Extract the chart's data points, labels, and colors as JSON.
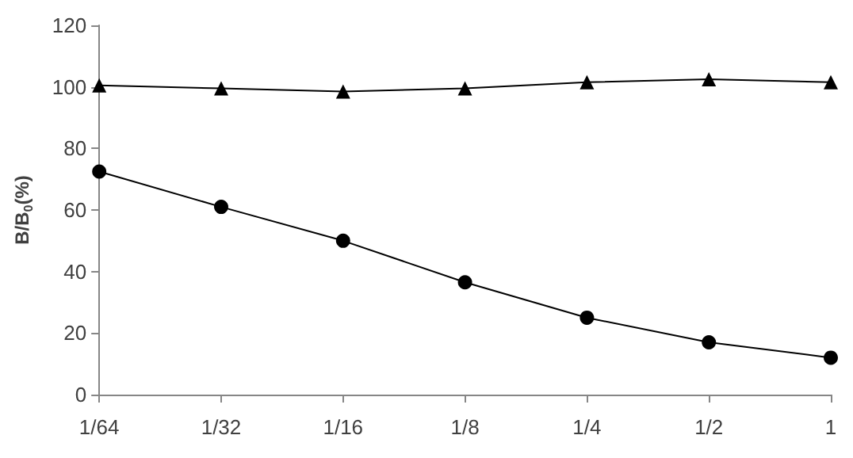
{
  "chart_data": {
    "type": "line",
    "ylabel": "B/B$_{0}$(%)",
    "categories": [
      "1/64",
      "1/32",
      "1/16",
      "1/8",
      "1/4",
      "1/2",
      "1"
    ],
    "series": [
      {
        "color": "#000000",
        "marker": "triangle",
        "values": [
          100.5,
          99.5,
          98.5,
          99.5,
          101.5,
          102.5,
          101.5
        ]
      },
      {
        "color": "#000000",
        "marker": "circle",
        "values": [
          72.5,
          61,
          50,
          36.5,
          25,
          17,
          12
        ]
      }
    ],
    "ylim": [
      0,
      120
    ],
    "yticks": [
      0,
      20,
      40,
      60,
      80,
      100,
      120
    ],
    "grid": false,
    "line_style": "solid"
  }
}
